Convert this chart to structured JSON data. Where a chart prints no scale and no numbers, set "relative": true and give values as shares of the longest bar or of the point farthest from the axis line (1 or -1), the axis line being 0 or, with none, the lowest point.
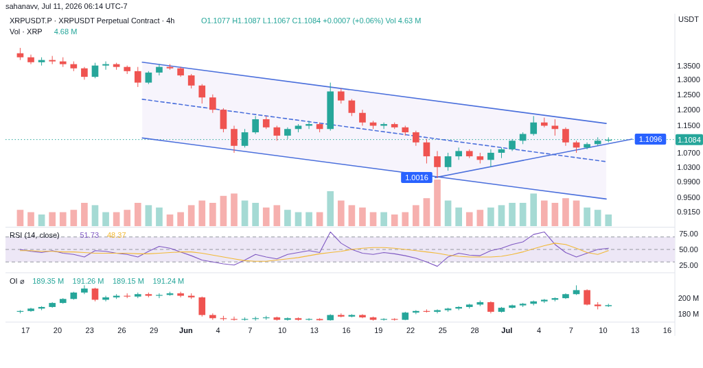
{
  "chart_data": [
    {
      "type": "candlestick",
      "title": "XRPUSDT.P · XRPUSDT Perpetual Contract · 4h",
      "subtitle": "O1.1077 H1.1087 L1.1067 C1.1084 +0.0007 (+0.06%) Vol 4.63 M",
      "ylabel": "USDT",
      "log": true,
      "tick_labels": "y",
      "annotations": [
        "sahanavv, Jul 11, 2026 06:14 UTC-7",
        {
          "text": "1.0016",
          "x": "2026-06-24T07:00",
          "y": 1.0016
        },
        {
          "text": "1.1096",
          "x": "2026-07-12T17:00",
          "y": 1.1096
        }
      ],
      "xlim": [
        "2026-05-15T03:00",
        "2026-07-16T17:00"
      ],
      "ylim": [
        0.88,
        1.55
      ],
      "yticks": [
        {
          "value": 1.35,
          "label": "1.3500"
        },
        {
          "value": 1.3,
          "label": "1.3000"
        },
        {
          "value": 1.25,
          "label": "1.2500"
        },
        {
          "value": 1.2,
          "label": "1.2000"
        },
        {
          "value": 1.15,
          "label": "1.1500"
        },
        {
          "value": 1.07,
          "label": "1.0700"
        },
        {
          "value": 1.03,
          "label": "1.0300"
        },
        {
          "value": 0.99,
          "label": "0.9900"
        },
        {
          "value": 0.95,
          "label": "0.9500"
        },
        {
          "value": 0.915,
          "label": "0.9150"
        }
      ],
      "ref_lines": [
        {
          "axis": "y",
          "value": 1.1084,
          "label": "1.1084",
          "color": "#26a69a",
          "line_style": "dotted"
        }
      ],
      "x": [
        "2026-05-16T12:00",
        "2026-05-17T12:00",
        "2026-05-18T12:00",
        "2026-05-19T12:00",
        "2026-05-20T12:00",
        "2026-05-21T12:00",
        "2026-05-22T12:00",
        "2026-05-23T12:00",
        "2026-05-24T12:00",
        "2026-05-25T12:00",
        "2026-05-26T12:00",
        "2026-05-27T12:00",
        "2026-05-28T12:00",
        "2026-05-29T12:00",
        "2026-05-30T12:00",
        "2026-05-31T12:00",
        "2026-06-01T12:00",
        "2026-06-02T12:00",
        "2026-06-03T12:00",
        "2026-06-04T12:00",
        "2026-06-05T12:00",
        "2026-06-06T12:00",
        "2026-06-07T12:00",
        "2026-06-08T12:00",
        "2026-06-09T12:00",
        "2026-06-10T12:00",
        "2026-06-11T12:00",
        "2026-06-12T12:00",
        "2026-06-13T12:00",
        "2026-06-14T12:00",
        "2026-06-15T12:00",
        "2026-06-16T12:00",
        "2026-06-17T12:00",
        "2026-06-18T12:00",
        "2026-06-19T12:00",
        "2026-06-20T12:00",
        "2026-06-21T12:00",
        "2026-06-22T12:00",
        "2026-06-23T12:00",
        "2026-06-24T12:00",
        "2026-06-25T12:00",
        "2026-06-26T12:00",
        "2026-06-27T12:00",
        "2026-06-28T12:00",
        "2026-06-29T12:00",
        "2026-06-30T12:00",
        "2026-07-01T12:00",
        "2026-07-02T12:00",
        "2026-07-03T12:00",
        "2026-07-04T12:00",
        "2026-07-05T12:00",
        "2026-07-06T12:00",
        "2026-07-07T12:00",
        "2026-07-08T12:00",
        "2026-07-09T12:00",
        "2026-07-10T12:00"
      ],
      "ohlc": [
        [
          1.395,
          1.415,
          1.37,
          1.38
        ],
        [
          1.38,
          1.39,
          1.355,
          1.362
        ],
        [
          1.362,
          1.38,
          1.35,
          1.37
        ],
        [
          1.37,
          1.385,
          1.355,
          1.365
        ],
        [
          1.365,
          1.38,
          1.345,
          1.355
        ],
        [
          1.355,
          1.365,
          1.33,
          1.34
        ],
        [
          1.34,
          1.345,
          1.3,
          1.31
        ],
        [
          1.31,
          1.36,
          1.305,
          1.35
        ],
        [
          1.35,
          1.365,
          1.335,
          1.355
        ],
        [
          1.355,
          1.36,
          1.335,
          1.345
        ],
        [
          1.345,
          1.35,
          1.32,
          1.33
        ],
        [
          1.33,
          1.345,
          1.275,
          1.29
        ],
        [
          1.29,
          1.33,
          1.285,
          1.325
        ],
        [
          1.325,
          1.355,
          1.315,
          1.345
        ],
        [
          1.345,
          1.355,
          1.335,
          1.34
        ],
        [
          1.34,
          1.345,
          1.31,
          1.315
        ],
        [
          1.315,
          1.32,
          1.27,
          1.28
        ],
        [
          1.28,
          1.285,
          1.22,
          1.24
        ],
        [
          1.24,
          1.25,
          1.19,
          1.2
        ],
        [
          1.2,
          1.205,
          1.13,
          1.14
        ],
        [
          1.14,
          1.15,
          1.07,
          1.09
        ],
        [
          1.09,
          1.14,
          1.085,
          1.13
        ],
        [
          1.13,
          1.18,
          1.125,
          1.17
        ],
        [
          1.17,
          1.18,
          1.14,
          1.145
        ],
        [
          1.145,
          1.15,
          1.105,
          1.12
        ],
        [
          1.12,
          1.145,
          1.11,
          1.14
        ],
        [
          1.14,
          1.155,
          1.13,
          1.15
        ],
        [
          1.15,
          1.165,
          1.14,
          1.155
        ],
        [
          1.155,
          1.16,
          1.13,
          1.14
        ],
        [
          1.14,
          1.29,
          1.135,
          1.26
        ],
        [
          1.26,
          1.27,
          1.22,
          1.23
        ],
        [
          1.23,
          1.235,
          1.18,
          1.19
        ],
        [
          1.19,
          1.2,
          1.15,
          1.16
        ],
        [
          1.16,
          1.165,
          1.14,
          1.15
        ],
        [
          1.15,
          1.16,
          1.14,
          1.155
        ],
        [
          1.155,
          1.16,
          1.14,
          1.145
        ],
        [
          1.145,
          1.15,
          1.12,
          1.13
        ],
        [
          1.13,
          1.135,
          1.09,
          1.1
        ],
        [
          1.1,
          1.11,
          1.04,
          1.06
        ],
        [
          1.06,
          1.075,
          1.0,
          1.03
        ],
        [
          1.03,
          1.07,
          1.02,
          1.06
        ],
        [
          1.06,
          1.085,
          1.05,
          1.075
        ],
        [
          1.075,
          1.08,
          1.055,
          1.06
        ],
        [
          1.06,
          1.07,
          1.04,
          1.05
        ],
        [
          1.05,
          1.08,
          1.03,
          1.07
        ],
        [
          1.07,
          1.085,
          1.055,
          1.08
        ],
        [
          1.08,
          1.11,
          1.075,
          1.105
        ],
        [
          1.105,
          1.13,
          1.095,
          1.125
        ],
        [
          1.125,
          1.18,
          1.12,
          1.16
        ],
        [
          1.16,
          1.175,
          1.145,
          1.15
        ],
        [
          1.15,
          1.17,
          1.12,
          1.14
        ],
        [
          1.14,
          1.145,
          1.09,
          1.1
        ],
        [
          1.1,
          1.105,
          1.07,
          1.085
        ],
        [
          1.085,
          1.1,
          1.08,
          1.095
        ],
        [
          1.095,
          1.115,
          1.09,
          1.105
        ],
        [
          1.105,
          1.115,
          1.1,
          1.108
        ]
      ],
      "colors": [
        "#ef5350",
        "#ef5350",
        "#26a69a",
        "#ef5350",
        "#ef5350",
        "#ef5350",
        "#ef5350",
        "#26a69a",
        "#26a69a",
        "#ef5350",
        "#ef5350",
        "#ef5350",
        "#26a69a",
        "#26a69a",
        "#ef5350",
        "#ef5350",
        "#ef5350",
        "#ef5350",
        "#ef5350",
        "#ef5350",
        "#ef5350",
        "#26a69a",
        "#26a69a",
        "#ef5350",
        "#ef5350",
        "#26a69a",
        "#26a69a",
        "#26a69a",
        "#ef5350",
        "#26a69a",
        "#ef5350",
        "#ef5350",
        "#ef5350",
        "#ef5350",
        "#26a69a",
        "#ef5350",
        "#ef5350",
        "#ef5350",
        "#ef5350",
        "#ef5350",
        "#26a69a",
        "#26a69a",
        "#ef5350",
        "#ef5350",
        "#26a69a",
        "#26a69a",
        "#26a69a",
        "#26a69a",
        "#26a69a",
        "#ef5350",
        "#ef5350",
        "#ef5350",
        "#ef5350",
        "#26a69a",
        "#26a69a",
        "#26a69a"
      ],
      "series": [
        {
          "type": "line",
          "color": "#4a6fdc",
          "line_style": "solid",
          "x": [
            "2026-05-27T22:00",
            "2026-07-10T07:00"
          ],
          "values": [
            1.362,
            1.157
          ]
        },
        {
          "type": "line",
          "color": "#4a6fdc",
          "line_style": "dashed",
          "x": [
            "2026-05-27T22:00",
            "2026-07-10T07:00"
          ],
          "values": [
            1.234,
            1.045
          ]
        },
        {
          "type": "line",
          "color": "#4a6fdc",
          "line_style": "solid",
          "x": [
            "2026-05-27T22:00",
            "2026-07-10T07:00"
          ],
          "values": [
            1.113,
            0.946
          ]
        },
        {
          "type": "line",
          "color": "#4a6fdc",
          "line_style": "solid",
          "x": [
            "2026-06-24T07:00",
            "2026-07-12T17:00"
          ],
          "values": [
            1.0016,
            1.1096
          ]
        }
      ]
    },
    {
      "type": "bar",
      "title": "Vol · XRP",
      "annotations": [
        "4.68 M"
      ],
      "relative": true,
      "tick_labels": false,
      "xlim": [
        "2026-05-15T03:00",
        "2026-07-16T17:00"
      ],
      "x": [
        "2026-05-16T12:00",
        "2026-05-17T12:00",
        "2026-05-18T12:00",
        "2026-05-19T12:00",
        "2026-05-20T12:00",
        "2026-05-21T12:00",
        "2026-05-22T12:00",
        "2026-05-23T12:00",
        "2026-05-24T12:00",
        "2026-05-25T12:00",
        "2026-05-26T12:00",
        "2026-05-27T12:00",
        "2026-05-28T12:00",
        "2026-05-29T12:00",
        "2026-05-30T12:00",
        "2026-05-31T12:00",
        "2026-06-01T12:00",
        "2026-06-02T12:00",
        "2026-06-03T12:00",
        "2026-06-04T12:00",
        "2026-06-05T12:00",
        "2026-06-06T12:00",
        "2026-06-07T12:00",
        "2026-06-08T12:00",
        "2026-06-09T12:00",
        "2026-06-10T12:00",
        "2026-06-11T12:00",
        "2026-06-12T12:00",
        "2026-06-13T12:00",
        "2026-06-14T12:00",
        "2026-06-15T12:00",
        "2026-06-16T12:00",
        "2026-06-17T12:00",
        "2026-06-18T12:00",
        "2026-06-19T12:00",
        "2026-06-20T12:00",
        "2026-06-21T12:00",
        "2026-06-22T12:00",
        "2026-06-23T12:00",
        "2026-06-24T12:00",
        "2026-06-25T12:00",
        "2026-06-26T12:00",
        "2026-06-27T12:00",
        "2026-06-28T12:00",
        "2026-06-29T12:00",
        "2026-06-30T12:00",
        "2026-07-01T12:00",
        "2026-07-02T12:00",
        "2026-07-03T12:00",
        "2026-07-04T12:00",
        "2026-07-05T12:00",
        "2026-07-06T12:00",
        "2026-07-07T12:00",
        "2026-07-08T12:00",
        "2026-07-09T12:00",
        "2026-07-10T12:00"
      ],
      "values": [
        0.35,
        0.3,
        0.25,
        0.3,
        0.3,
        0.35,
        0.5,
        0.45,
        0.3,
        0.3,
        0.35,
        0.5,
        0.45,
        0.4,
        0.25,
        0.3,
        0.45,
        0.55,
        0.5,
        0.65,
        0.7,
        0.55,
        0.5,
        0.4,
        0.45,
        0.35,
        0.3,
        0.3,
        0.3,
        0.75,
        0.55,
        0.45,
        0.4,
        0.3,
        0.3,
        0.25,
        0.3,
        0.45,
        0.6,
        1,
        0.55,
        0.4,
        0.3,
        0.35,
        0.4,
        0.45,
        0.5,
        0.5,
        0.7,
        0.55,
        0.5,
        0.6,
        0.55,
        0.4,
        0.35,
        0.25
      ],
      "colors": [
        "#f6b0ae",
        "#f6b0ae",
        "#a5dad4",
        "#f6b0ae",
        "#f6b0ae",
        "#f6b0ae",
        "#f6b0ae",
        "#a5dad4",
        "#a5dad4",
        "#f6b0ae",
        "#f6b0ae",
        "#f6b0ae",
        "#a5dad4",
        "#a5dad4",
        "#f6b0ae",
        "#f6b0ae",
        "#f6b0ae",
        "#f6b0ae",
        "#f6b0ae",
        "#f6b0ae",
        "#f6b0ae",
        "#a5dad4",
        "#a5dad4",
        "#f6b0ae",
        "#f6b0ae",
        "#a5dad4",
        "#a5dad4",
        "#a5dad4",
        "#f6b0ae",
        "#a5dad4",
        "#f6b0ae",
        "#f6b0ae",
        "#f6b0ae",
        "#f6b0ae",
        "#a5dad4",
        "#f6b0ae",
        "#f6b0ae",
        "#f6b0ae",
        "#f6b0ae",
        "#f6b0ae",
        "#a5dad4",
        "#a5dad4",
        "#f6b0ae",
        "#f6b0ae",
        "#a5dad4",
        "#a5dad4",
        "#a5dad4",
        "#a5dad4",
        "#a5dad4",
        "#f6b0ae",
        "#f6b0ae",
        "#f6b0ae",
        "#f6b0ae",
        "#a5dad4",
        "#a5dad4",
        "#a5dad4"
      ]
    },
    {
      "type": "line",
      "title": "RSI (14, close)",
      "annotations": [
        "51.73",
        "48.37"
      ],
      "tick_labels": "y",
      "xlim": [
        "2026-05-15T03:00",
        "2026-07-16T17:00"
      ],
      "ylim": [
        16,
        84
      ],
      "yticks": [
        {
          "value": 75,
          "label": "75.00"
        },
        {
          "value": 50,
          "label": "50.00"
        },
        {
          "value": 25,
          "label": "25.00"
        }
      ],
      "ref_lines": [
        {
          "axis": "y",
          "value": 70,
          "color": "#9598a1",
          "line_style": "dashed"
        },
        {
          "axis": "y",
          "value": 50,
          "color": "#9598a1",
          "line_style": "dashed"
        },
        {
          "axis": "y",
          "value": 30,
          "color": "#9598a1",
          "line_style": "dashed"
        }
      ],
      "bands": [
        {
          "axis": "y",
          "from": 30,
          "to": 70,
          "color": "#ede7f6"
        }
      ],
      "x": [
        "2026-05-16T12:00",
        "2026-05-17T12:00",
        "2026-05-18T12:00",
        "2026-05-19T12:00",
        "2026-05-20T12:00",
        "2026-05-21T12:00",
        "2026-05-22T12:00",
        "2026-05-23T12:00",
        "2026-05-24T12:00",
        "2026-05-25T12:00",
        "2026-05-26T12:00",
        "2026-05-27T12:00",
        "2026-05-28T12:00",
        "2026-05-29T12:00",
        "2026-05-30T12:00",
        "2026-05-31T12:00",
        "2026-06-01T12:00",
        "2026-06-02T12:00",
        "2026-06-03T12:00",
        "2026-06-04T12:00",
        "2026-06-05T12:00",
        "2026-06-06T12:00",
        "2026-06-07T12:00",
        "2026-06-08T12:00",
        "2026-06-09T12:00",
        "2026-06-10T12:00",
        "2026-06-11T12:00",
        "2026-06-12T12:00",
        "2026-06-13T12:00",
        "2026-06-14T12:00",
        "2026-06-15T12:00",
        "2026-06-16T12:00",
        "2026-06-17T12:00",
        "2026-06-18T12:00",
        "2026-06-19T12:00",
        "2026-06-20T12:00",
        "2026-06-21T12:00",
        "2026-06-22T12:00",
        "2026-06-23T12:00",
        "2026-06-24T12:00",
        "2026-06-25T12:00",
        "2026-06-26T12:00",
        "2026-06-27T12:00",
        "2026-06-28T12:00",
        "2026-06-29T12:00",
        "2026-06-30T12:00",
        "2026-07-01T12:00",
        "2026-07-02T12:00",
        "2026-07-03T12:00",
        "2026-07-04T12:00",
        "2026-07-05T12:00",
        "2026-07-06T12:00",
        "2026-07-07T12:00",
        "2026-07-08T12:00",
        "2026-07-09T12:00",
        "2026-07-10T12:00"
      ],
      "series": [
        {
          "color": "#7e57c2",
          "values": [
            50,
            47,
            45,
            48,
            44,
            42,
            38,
            48,
            47,
            44,
            42,
            38,
            47,
            55,
            52,
            46,
            40,
            33,
            30,
            27,
            25,
            33,
            42,
            38,
            35,
            42,
            45,
            48,
            45,
            78,
            60,
            50,
            44,
            42,
            45,
            43,
            40,
            36,
            30,
            23,
            38,
            44,
            41,
            40,
            48,
            52,
            58,
            62,
            74,
            78,
            58,
            45,
            38,
            44,
            50,
            52
          ]
        },
        {
          "color": "#f2b935",
          "values": [
            48,
            48,
            47,
            47,
            46,
            46,
            45,
            44,
            44,
            44,
            44,
            43,
            43,
            44,
            45,
            46,
            46,
            44,
            41,
            38,
            35,
            32,
            31,
            31,
            33,
            35,
            37,
            40,
            43,
            45,
            47,
            50,
            52,
            53,
            53,
            52,
            50,
            48,
            46,
            44,
            41,
            39,
            38,
            38,
            38,
            39,
            42,
            46,
            51,
            56,
            60,
            58,
            52,
            45,
            42,
            48
          ]
        }
      ]
    },
    {
      "type": "candlestick",
      "title": "OI ⌀",
      "annotations": [
        "189.35 M",
        "191.26 M",
        "189.15 M",
        "191.24 M"
      ],
      "xlim": [
        "2026-05-15T03:00",
        "2026-07-16T17:00"
      ],
      "ylim": [
        171,
        230
      ],
      "yticks": [
        {
          "value": 200,
          "label": "200 M"
        },
        {
          "value": 180,
          "label": "180 M"
        }
      ],
      "xticks": [
        {
          "value": "2026-05-17",
          "label": "17"
        },
        {
          "value": "2026-05-20",
          "label": "20"
        },
        {
          "value": "2026-05-23",
          "label": "23"
        },
        {
          "value": "2026-05-26",
          "label": "26"
        },
        {
          "value": "2026-05-29",
          "label": "29"
        },
        {
          "value": "2026-06-01",
          "label": "Jun"
        },
        {
          "value": "2026-06-04",
          "label": "4"
        },
        {
          "value": "2026-06-07",
          "label": "7"
        },
        {
          "value": "2026-06-10",
          "label": "10"
        },
        {
          "value": "2026-06-13",
          "label": "13"
        },
        {
          "value": "2026-06-16",
          "label": "16"
        },
        {
          "value": "2026-06-19",
          "label": "19"
        },
        {
          "value": "2026-06-22",
          "label": "22"
        },
        {
          "value": "2026-06-25",
          "label": "25"
        },
        {
          "value": "2026-06-28",
          "label": "28"
        },
        {
          "value": "2026-07-01",
          "label": "Jul"
        },
        {
          "value": "2026-07-04",
          "label": "4"
        },
        {
          "value": "2026-07-07",
          "label": "7"
        },
        {
          "value": "2026-07-10",
          "label": "10"
        },
        {
          "value": "2026-07-13",
          "label": "13"
        },
        {
          "value": "2026-07-16",
          "label": "16"
        }
      ],
      "x": [
        "2026-05-16T12:00",
        "2026-05-17T12:00",
        "2026-05-18T12:00",
        "2026-05-19T12:00",
        "2026-05-20T12:00",
        "2026-05-21T12:00",
        "2026-05-22T12:00",
        "2026-05-23T12:00",
        "2026-05-24T12:00",
        "2026-05-25T12:00",
        "2026-05-26T12:00",
        "2026-05-27T12:00",
        "2026-05-28T12:00",
        "2026-05-29T12:00",
        "2026-05-30T12:00",
        "2026-05-31T12:00",
        "2026-06-01T12:00",
        "2026-06-02T12:00",
        "2026-06-03T12:00",
        "2026-06-04T12:00",
        "2026-06-05T12:00",
        "2026-06-06T12:00",
        "2026-06-07T12:00",
        "2026-06-08T12:00",
        "2026-06-09T12:00",
        "2026-06-10T12:00",
        "2026-06-11T12:00",
        "2026-06-12T12:00",
        "2026-06-13T12:00",
        "2026-06-14T12:00",
        "2026-06-15T12:00",
        "2026-06-16T12:00",
        "2026-06-17T12:00",
        "2026-06-18T12:00",
        "2026-06-19T12:00",
        "2026-06-20T12:00",
        "2026-06-21T12:00",
        "2026-06-22T12:00",
        "2026-06-23T12:00",
        "2026-06-24T12:00",
        "2026-06-25T12:00",
        "2026-06-26T12:00",
        "2026-06-27T12:00",
        "2026-06-28T12:00",
        "2026-06-29T12:00",
        "2026-06-30T12:00",
        "2026-07-01T12:00",
        "2026-07-02T12:00",
        "2026-07-03T12:00",
        "2026-07-04T12:00",
        "2026-07-05T12:00",
        "2026-07-06T12:00",
        "2026-07-07T12:00",
        "2026-07-08T12:00",
        "2026-07-09T12:00",
        "2026-07-10T12:00"
      ],
      "ohlc": [
        [
          183,
          185,
          181,
          184
        ],
        [
          184,
          188,
          183,
          187
        ],
        [
          187,
          190,
          185,
          189
        ],
        [
          189,
          195,
          188,
          194
        ],
        [
          194,
          200,
          193,
          199
        ],
        [
          199,
          208,
          198,
          207
        ],
        [
          207,
          216,
          205,
          212
        ],
        [
          212,
          213,
          196,
          198
        ],
        [
          198,
          203,
          196,
          201
        ],
        [
          201,
          205,
          199,
          203
        ],
        [
          203,
          206,
          200,
          202
        ],
        [
          202,
          207,
          200,
          205
        ],
        [
          205,
          207,
          201,
          203
        ],
        [
          203,
          206,
          200,
          204
        ],
        [
          204,
          208,
          203,
          206
        ],
        [
          206,
          208,
          201,
          203
        ],
        [
          203,
          206,
          199,
          201
        ],
        [
          201,
          202,
          177,
          179
        ],
        [
          179,
          181,
          173,
          175
        ],
        [
          175,
          178,
          172,
          174
        ],
        [
          174,
          177,
          172,
          173
        ],
        [
          173,
          176,
          172,
          174
        ],
        [
          174,
          177,
          172,
          175
        ],
        [
          175,
          178,
          173,
          176
        ],
        [
          176,
          177,
          172,
          173
        ],
        [
          173,
          176,
          172,
          175
        ],
        [
          175,
          176,
          172,
          173
        ],
        [
          173,
          175,
          172,
          174
        ],
        [
          174,
          175,
          172,
          172.5
        ],
        [
          172.5,
          180,
          172,
          179
        ],
        [
          179,
          181,
          176,
          177
        ],
        [
          177,
          180,
          176,
          179
        ],
        [
          179,
          180,
          175,
          176
        ],
        [
          176,
          177,
          172,
          173
        ],
        [
          173,
          175,
          172,
          174
        ],
        [
          174,
          175,
          172,
          173
        ],
        [
          173,
          183,
          172.5,
          182
        ],
        [
          182,
          185,
          180,
          184
        ],
        [
          184,
          186,
          182,
          183
        ],
        [
          183,
          186,
          181,
          185
        ],
        [
          185,
          188,
          183,
          187
        ],
        [
          187,
          190,
          185,
          189
        ],
        [
          189,
          193,
          187,
          192
        ],
        [
          192,
          197,
          190,
          195
        ],
        [
          195,
          196,
          181,
          183
        ],
        [
          183,
          189,
          182,
          188
        ],
        [
          188,
          192,
          187,
          191
        ],
        [
          191,
          194,
          189,
          193
        ],
        [
          193,
          197,
          191,
          196
        ],
        [
          196,
          199,
          194,
          198
        ],
        [
          198,
          201,
          196,
          200
        ],
        [
          200,
          206,
          199,
          205
        ],
        [
          205,
          216,
          204,
          210
        ],
        [
          210,
          211,
          191,
          192
        ],
        [
          192,
          195,
          186,
          190
        ],
        [
          190,
          193,
          189,
          191.24
        ]
      ],
      "colors": [
        "#26a69a",
        "#26a69a",
        "#26a69a",
        "#26a69a",
        "#26a69a",
        "#26a69a",
        "#26a69a",
        "#ef5350",
        "#26a69a",
        "#26a69a",
        "#ef5350",
        "#26a69a",
        "#ef5350",
        "#26a69a",
        "#26a69a",
        "#ef5350",
        "#ef5350",
        "#ef5350",
        "#ef5350",
        "#ef5350",
        "#ef5350",
        "#26a69a",
        "#26a69a",
        "#26a69a",
        "#ef5350",
        "#26a69a",
        "#ef5350",
        "#26a69a",
        "#ef5350",
        "#26a69a",
        "#ef5350",
        "#26a69a",
        "#ef5350",
        "#ef5350",
        "#26a69a",
        "#ef5350",
        "#26a69a",
        "#26a69a",
        "#ef5350",
        "#26a69a",
        "#26a69a",
        "#26a69a",
        "#26a69a",
        "#26a69a",
        "#ef5350",
        "#26a69a",
        "#26a69a",
        "#26a69a",
        "#26a69a",
        "#26a69a",
        "#26a69a",
        "#26a69a",
        "#26a69a",
        "#ef5350",
        "#ef5350",
        "#26a69a"
      ]
    }
  ]
}
